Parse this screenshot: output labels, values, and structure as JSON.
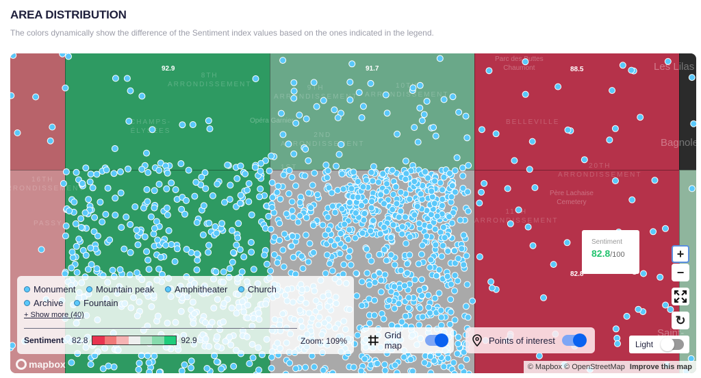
{
  "header": {
    "title": "AREA DISTRIBUTION",
    "subtitle": "The colors dynamically show the difference of the Sentiment index values based on the ones indicated in the legend."
  },
  "map": {
    "cell_colors": {
      "low": "#b5324a",
      "mid_low": "#c98a8e",
      "neutral": "#a9a9a9",
      "mid_high": "#6aa889",
      "high": "#2e9a62"
    },
    "cell_values": [
      "92.9",
      "91.7",
      "88.5",
      "82.8"
    ],
    "place_labels": {
      "a8": "8TH\nARRONDISSEMENT",
      "champs": "CHAMPS-\nÉLYSÉES",
      "opera": "Opéra Garnier",
      "a9": "9TH\nARRONDISSEMENT",
      "a10": "10TH\nARRONDISSEMENT",
      "a2": "2ND\nARRONDISSEMENT",
      "a1": "1ST",
      "a16": "16TH\nARRONDISSEMENT",
      "passy": "PASSY",
      "buttes": "Parc des Buttes\nChaumont",
      "belleville": "BELLEVILLE",
      "a20": "20TH\nARRONDISSEMENT",
      "lachaise": "Père Lachaise\nCemetery",
      "a11": "11TH\nARRONDISSEMENT",
      "lilas": "Les Lilas",
      "bagnolet": "Bagnolet",
      "saintmande": "Saint-Ma"
    },
    "poi_color": "#5ac8fa"
  },
  "legend": {
    "categories": [
      "Monument",
      "Mountain peak",
      "Amphitheater",
      "Church",
      "Archive",
      "Fountain"
    ],
    "show_more": "+ Show more (40)",
    "sentiment_label": "Sentiment",
    "min": "82.8",
    "max": "92.9",
    "scale_colors": [
      "#e8334f",
      "#f07878",
      "#f6b3b3",
      "#efefef",
      "#bfe3cf",
      "#86dbac",
      "#1fcc7c"
    ],
    "zoom": "Zoom: 109%"
  },
  "toggles": {
    "grid_map": {
      "label": "Grid map",
      "on": true
    },
    "poi": {
      "label": "Points of interest",
      "on": true
    }
  },
  "tooltip": {
    "label": "Sentiment",
    "value": "82.8",
    "suffix": "/100",
    "value_color": "#22c36e"
  },
  "controls": {
    "zoom_in": "+",
    "zoom_out": "−",
    "fullscreen": "⛶",
    "reset": "↻"
  },
  "theme": {
    "label": "Light",
    "on": false
  },
  "attribution": {
    "text": "© Mapbox © OpenStreetMap",
    "improve": "Improve this map",
    "logo": "mapbox"
  }
}
